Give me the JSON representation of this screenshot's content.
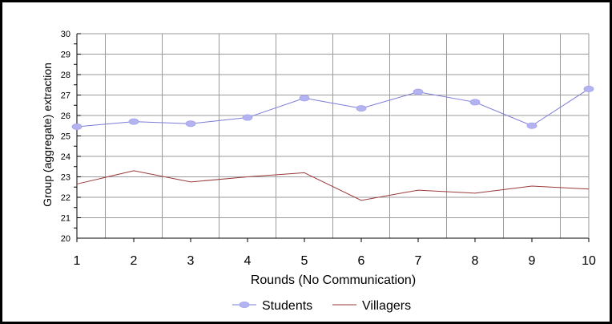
{
  "chart_data": {
    "type": "line",
    "xlabel": "Rounds (No Communication)",
    "ylabel": "Group (aggregate) extraction",
    "x": [
      1,
      2,
      3,
      4,
      5,
      6,
      7,
      8,
      9,
      10
    ],
    "ylim": [
      20,
      30
    ],
    "xlim": [
      1,
      10
    ],
    "yticks": [
      20,
      21,
      22,
      23,
      24,
      25,
      26,
      27,
      28,
      29,
      30
    ],
    "grid": true,
    "legend_position": "bottom",
    "series": [
      {
        "name": "Students",
        "color": "#7b7bd8",
        "marker": "ellipse",
        "values": [
          25.45,
          25.7,
          25.6,
          25.9,
          26.85,
          26.35,
          27.15,
          26.65,
          25.5,
          27.3
        ]
      },
      {
        "name": "Villagers",
        "color": "#9a3a3a",
        "marker": "none",
        "values": [
          22.65,
          23.3,
          22.75,
          23.0,
          23.2,
          21.85,
          22.35,
          22.2,
          22.55,
          22.4
        ]
      }
    ]
  }
}
